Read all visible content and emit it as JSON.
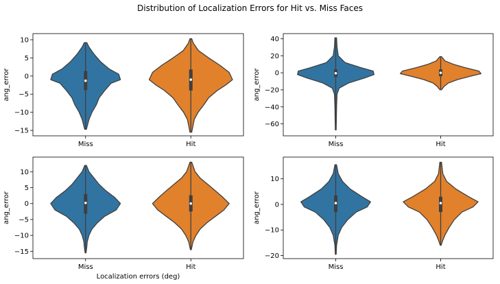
{
  "figure": {
    "title": "Distribution of Localization Errors for Hit vs. Miss Faces"
  },
  "colors": {
    "Miss": "#3274a1",
    "Hit": "#e1812c",
    "edge": "#3f3f3f"
  },
  "chart_data": [
    {
      "type": "violin",
      "categories": [
        "Miss",
        "Hit"
      ],
      "ylabel": "ang_error",
      "xlabel": "",
      "ylim": [
        -16.5,
        11.7
      ],
      "yticks": [
        10,
        5,
        0,
        -5,
        -10,
        -15
      ],
      "series": [
        {
          "category": "Miss",
          "min": -14.7,
          "max": 9.2,
          "q1": -3.9,
          "median": -1.3,
          "q3": 1.4,
          "profile": [
            [
              9.2,
              0.03
            ],
            [
              8.0,
              0.08
            ],
            [
              6.0,
              0.2
            ],
            [
              4.0,
              0.35
            ],
            [
              2.0,
              0.55
            ],
            [
              0.5,
              0.78
            ],
            [
              -1.0,
              0.82
            ],
            [
              -2.0,
              0.6
            ],
            [
              -4.0,
              0.45
            ],
            [
              -6.0,
              0.32
            ],
            [
              -8.0,
              0.25
            ],
            [
              -10.0,
              0.15
            ],
            [
              -12.0,
              0.08
            ],
            [
              -14.7,
              0.02
            ]
          ]
        },
        {
          "category": "Hit",
          "min": -15.5,
          "max": 10.3,
          "q1": -4.0,
          "median": -1.0,
          "q3": 1.8,
          "profile": [
            [
              10.3,
              0.02
            ],
            [
              9.0,
              0.06
            ],
            [
              7.0,
              0.18
            ],
            [
              5.0,
              0.42
            ],
            [
              3.0,
              0.68
            ],
            [
              1.0,
              0.9
            ],
            [
              -1.0,
              0.98
            ],
            [
              -2.5,
              0.82
            ],
            [
              -4.0,
              0.62
            ],
            [
              -6.0,
              0.42
            ],
            [
              -8.0,
              0.3
            ],
            [
              -10.0,
              0.17
            ],
            [
              -12.0,
              0.08
            ],
            [
              -15.5,
              0.02
            ]
          ]
        }
      ]
    },
    {
      "type": "violin",
      "categories": [
        "Miss",
        "Hit"
      ],
      "ylabel": "ang_error",
      "xlabel": "",
      "ylim": [
        -74,
        46
      ],
      "yticks": [
        40,
        20,
        0,
        -20,
        -40,
        -60
      ],
      "series": [
        {
          "category": "Miss",
          "min": -67,
          "max": 41,
          "q1": -5,
          "median": -0.5,
          "q3": 4,
          "profile": [
            [
              41,
              0.02
            ],
            [
              30,
              0.03
            ],
            [
              20,
              0.06
            ],
            [
              12,
              0.22
            ],
            [
              6,
              0.6
            ],
            [
              2,
              0.88
            ],
            [
              -2,
              0.9
            ],
            [
              -6,
              0.68
            ],
            [
              -12,
              0.3
            ],
            [
              -18,
              0.08
            ],
            [
              -25,
              0.03
            ],
            [
              -40,
              0.02
            ],
            [
              -55,
              0.015
            ],
            [
              -67,
              0.01
            ]
          ]
        },
        {
          "category": "Hit",
          "min": -20,
          "max": 19,
          "q1": -4,
          "median": 0,
          "q3": 4,
          "profile": [
            [
              19,
              0.02
            ],
            [
              14,
              0.1
            ],
            [
              10,
              0.3
            ],
            [
              6,
              0.58
            ],
            [
              2,
              0.9
            ],
            [
              -1,
              0.95
            ],
            [
              -4,
              0.7
            ],
            [
              -8,
              0.4
            ],
            [
              -12,
              0.18
            ],
            [
              -16,
              0.08
            ],
            [
              -20,
              0.02
            ]
          ]
        }
      ]
    },
    {
      "type": "violin",
      "categories": [
        "Miss",
        "Hit"
      ],
      "ylabel": "ang_error",
      "xlabel": "Localization errors (deg)",
      "ylim": [
        -17.3,
        14.6
      ],
      "yticks": [
        10,
        5,
        0,
        -5,
        -10,
        -15
      ],
      "series": [
        {
          "category": "Miss",
          "min": -15.5,
          "max": 12.0,
          "q1": -3.2,
          "median": 0.2,
          "q3": 3.0,
          "profile": [
            [
              12.0,
              0.02
            ],
            [
              10.0,
              0.08
            ],
            [
              8.0,
              0.2
            ],
            [
              6.0,
              0.32
            ],
            [
              4.0,
              0.48
            ],
            [
              2.0,
              0.68
            ],
            [
              0.0,
              0.82
            ],
            [
              -2.0,
              0.72
            ],
            [
              -4.0,
              0.45
            ],
            [
              -6.0,
              0.28
            ],
            [
              -8.0,
              0.15
            ],
            [
              -10.0,
              0.08
            ],
            [
              -12.0,
              0.04
            ],
            [
              -13.5,
              0.03
            ],
            [
              -15.5,
              0.01
            ]
          ]
        },
        {
          "category": "Hit",
          "min": -14.5,
          "max": 13.0,
          "q1": -2.5,
          "median": 0.0,
          "q3": 2.6,
          "profile": [
            [
              13.0,
              0.02
            ],
            [
              10.0,
              0.1
            ],
            [
              8.0,
              0.22
            ],
            [
              6.0,
              0.4
            ],
            [
              4.0,
              0.58
            ],
            [
              2.0,
              0.75
            ],
            [
              0.0,
              0.9
            ],
            [
              -2.0,
              0.78
            ],
            [
              -4.0,
              0.58
            ],
            [
              -6.0,
              0.38
            ],
            [
              -8.0,
              0.22
            ],
            [
              -10.0,
              0.12
            ],
            [
              -12.0,
              0.05
            ],
            [
              -14.5,
              0.01
            ]
          ]
        }
      ]
    },
    {
      "type": "violin",
      "categories": [
        "Miss",
        "Hit"
      ],
      "ylabel": "ang_error",
      "xlabel": "",
      "ylim": [
        -21.2,
        18.5
      ],
      "yticks": [
        10,
        0,
        -10,
        -20
      ],
      "series": [
        {
          "category": "Miss",
          "min": -19.5,
          "max": 15.5,
          "q1": -3.0,
          "median": 0.5,
          "q3": 3.5,
          "profile": [
            [
              15.5,
              0.02
            ],
            [
              12.0,
              0.06
            ],
            [
              9.0,
              0.16
            ],
            [
              6.0,
              0.34
            ],
            [
              3.0,
              0.62
            ],
            [
              1.0,
              0.82
            ],
            [
              -1.0,
              0.74
            ],
            [
              -3.0,
              0.48
            ],
            [
              -6.0,
              0.28
            ],
            [
              -9.0,
              0.14
            ],
            [
              -12.0,
              0.06
            ],
            [
              -16.0,
              0.02
            ],
            [
              -19.5,
              0.01
            ]
          ]
        },
        {
          "category": "Hit",
          "min": -16.0,
          "max": 16.5,
          "q1": -3.0,
          "median": 0.5,
          "q3": 3.0,
          "profile": [
            [
              16.5,
              0.02
            ],
            [
              12.0,
              0.05
            ],
            [
              9.0,
              0.14
            ],
            [
              6.0,
              0.36
            ],
            [
              3.0,
              0.66
            ],
            [
              1.0,
              0.88
            ],
            [
              -1.0,
              0.76
            ],
            [
              -3.0,
              0.5
            ],
            [
              -6.0,
              0.32
            ],
            [
              -9.0,
              0.2
            ],
            [
              -12.0,
              0.1
            ],
            [
              -14.0,
              0.05
            ],
            [
              -16.0,
              0.01
            ]
          ]
        }
      ]
    }
  ]
}
